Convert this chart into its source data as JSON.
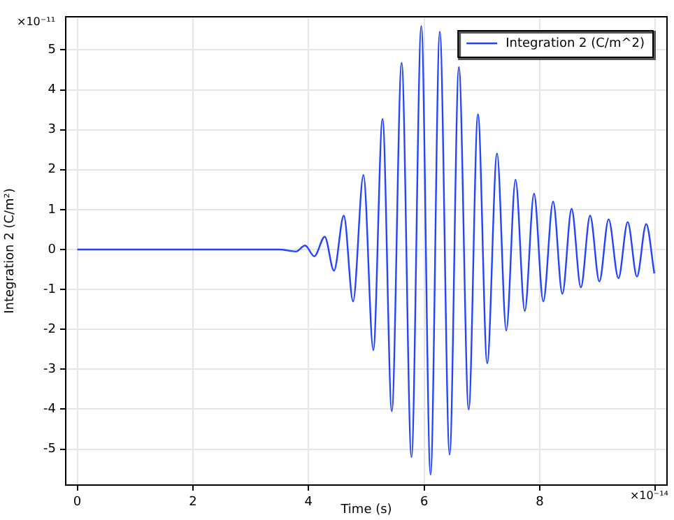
{
  "chart_data": {
    "type": "line",
    "xlabel": "Time (s)",
    "ylabel": "Integration 2 (C/m²)",
    "annotations": [
      "×10⁻¹¹",
      "×10⁻¹⁴"
    ],
    "xlim": [
      -0.2,
      10.2
    ],
    "ylim": [
      -5.9,
      5.83
    ],
    "xticks": [
      0,
      2,
      4,
      6,
      8,
      {
        "value": 10,
        "label": null
      }
    ],
    "yticks": [
      -5,
      -4,
      -3,
      -2,
      -1,
      0,
      1,
      2,
      3,
      4,
      5
    ],
    "grid": true,
    "legend": "top right",
    "marker": "none",
    "line_style": "solid",
    "series": [
      {
        "name": "Integration 2 (C/m^2)",
        "color": "#2443ff",
        "x": [
          0,
          3.5,
          3.78,
          3.94,
          4.1,
          4.28,
          4.44,
          4.61,
          4.77,
          4.95,
          5.12,
          5.28,
          5.44,
          5.61,
          5.78,
          5.95,
          6.11,
          6.27,
          6.44,
          6.6,
          6.77,
          6.93,
          7.09,
          7.26,
          7.42,
          7.58,
          7.74,
          7.9,
          8.06,
          8.23,
          8.39,
          8.55,
          8.71,
          8.87,
          9.03,
          9.19,
          9.36,
          9.52,
          9.68,
          9.84,
          9.98
        ],
        "values": [
          0,
          0,
          -0.05,
          0.1,
          -0.17,
          0.32,
          -0.53,
          0.85,
          -1.3,
          1.87,
          -2.52,
          3.27,
          -4.05,
          4.68,
          -5.2,
          5.6,
          -5.64,
          5.46,
          -5.14,
          4.57,
          -4.01,
          3.39,
          -2.85,
          2.41,
          -2.03,
          1.75,
          -1.54,
          1.4,
          -1.3,
          1.2,
          -1.11,
          1.02,
          -0.95,
          0.85,
          -0.8,
          0.76,
          -0.72,
          0.69,
          -0.68,
          0.64,
          -0.6
        ]
      }
    ]
  }
}
